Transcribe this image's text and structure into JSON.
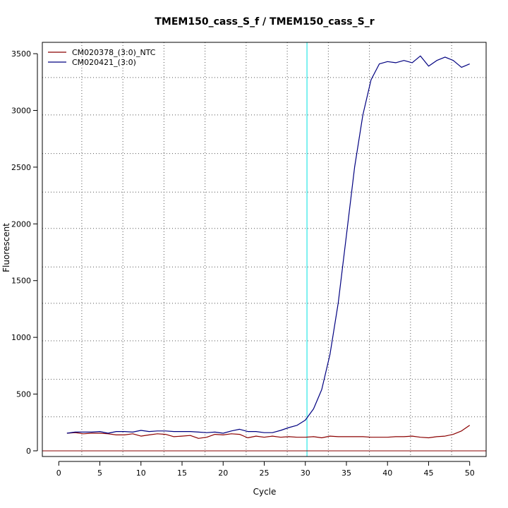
{
  "chart_data": {
    "type": "line",
    "title": "TMEM150_cass_S_f / TMEM150_cass_S_r",
    "xlabel": "Cycle",
    "ylabel": "Fluorescent",
    "xlim": [
      -2,
      52
    ],
    "ylim": [
      -50,
      3600
    ],
    "xticks": [
      0,
      5,
      10,
      15,
      20,
      25,
      30,
      35,
      40,
      45,
      50
    ],
    "yticks": [
      0,
      500,
      1000,
      1500,
      2000,
      2500,
      3000,
      3500
    ],
    "grid": {
      "vertical": [
        2.8,
        7.8,
        12.8,
        17.8,
        22.8,
        27.8,
        32.8,
        37.8,
        42.8,
        47.8
      ],
      "horizontal": [
        300,
        630,
        970,
        1300,
        1620,
        1960,
        2280,
        2620,
        2960,
        3290
      ]
    },
    "threshold_cycle": 30.2,
    "baseline_y": 0,
    "legend_position": "top-left",
    "colors": {
      "threshold": "#00e0e0",
      "baseline": "#8b0000",
      "grid": "#555555"
    },
    "x": [
      1,
      2,
      3,
      4,
      5,
      6,
      7,
      8,
      9,
      10,
      11,
      12,
      13,
      14,
      15,
      16,
      17,
      18,
      19,
      20,
      21,
      22,
      23,
      24,
      25,
      26,
      27,
      28,
      29,
      30,
      31,
      32,
      33,
      34,
      35,
      36,
      37,
      38,
      39,
      40,
      41,
      42,
      43,
      44,
      45,
      46,
      47,
      48,
      49,
      50
    ],
    "series": [
      {
        "name": "CM020378_(3:0)_NTC",
        "color": "#8b0000",
        "values": [
          155,
          160,
          150,
          155,
          155,
          150,
          140,
          140,
          150,
          130,
          140,
          150,
          145,
          125,
          130,
          135,
          110,
          120,
          145,
          140,
          150,
          145,
          115,
          130,
          120,
          130,
          120,
          125,
          120,
          120,
          125,
          115,
          130,
          125,
          125,
          125,
          125,
          120,
          120,
          120,
          125,
          125,
          130,
          120,
          115,
          125,
          130,
          145,
          175,
          225
        ]
      },
      {
        "name": "CM020421_(3:0)",
        "color": "#000080",
        "values": [
          155,
          165,
          165,
          165,
          170,
          155,
          170,
          170,
          165,
          180,
          170,
          175,
          175,
          170,
          170,
          170,
          165,
          160,
          165,
          155,
          175,
          190,
          170,
          170,
          160,
          160,
          180,
          205,
          225,
          270,
          370,
          540,
          850,
          1300,
          1900,
          2500,
          2960,
          3270,
          3410,
          3430,
          3420,
          3440,
          3420,
          3480,
          3390,
          3440,
          3470,
          3440,
          3380,
          3410
        ]
      }
    ]
  }
}
